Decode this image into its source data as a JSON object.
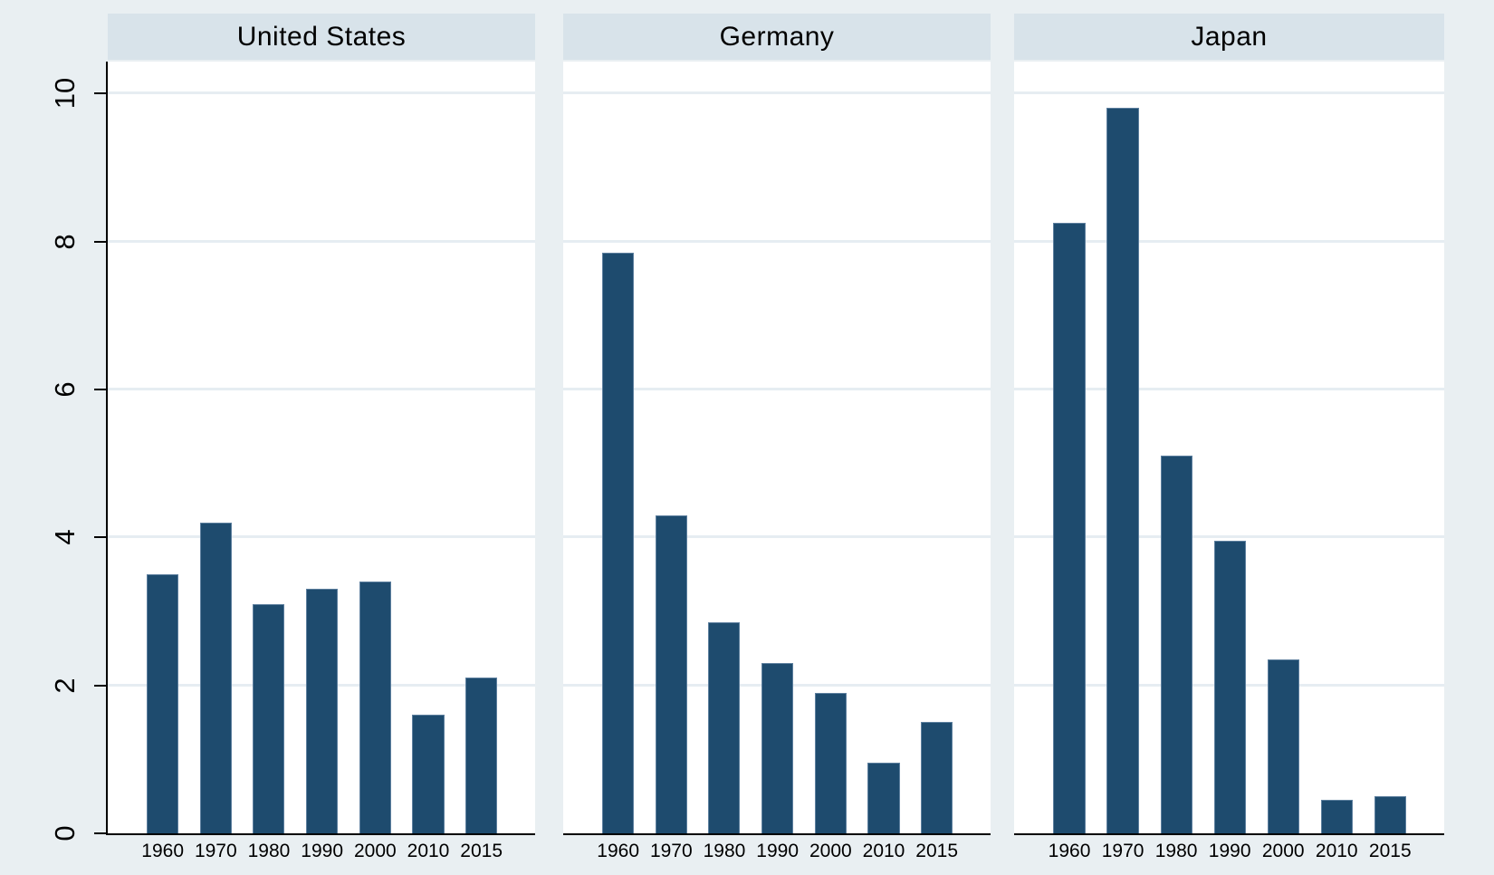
{
  "chart_data": {
    "type": "bar",
    "categories": [
      "1960",
      "1970",
      "1980",
      "1990",
      "2000",
      "2010",
      "2015"
    ],
    "panels": [
      {
        "title": "United States",
        "values": [
          3.5,
          4.2,
          3.1,
          3.3,
          3.4,
          1.6,
          2.1
        ]
      },
      {
        "title": "Germany",
        "values": [
          7.85,
          4.3,
          2.85,
          2.3,
          1.9,
          0.95,
          1.5
        ]
      },
      {
        "title": "Japan",
        "values": [
          8.25,
          9.8,
          5.1,
          3.95,
          2.35,
          0.45,
          0.5
        ]
      }
    ],
    "yticks": [
      0,
      2,
      4,
      6,
      8,
      10
    ],
    "ylim": [
      0,
      10.43
    ],
    "xlabel": "",
    "ylabel": "",
    "title": "",
    "grid": true,
    "legend": "none",
    "layout_hint": "three by-panels side by side, shared y axis on left, Stata s2color style",
    "bar_color": "#1e4b6e",
    "bar_outline_color": "#5d7f9e",
    "panel_band_color": "#d8e3ea",
    "background_color": "#e9eff2",
    "plot_background": "#ffffff",
    "gridline_color": "#e6edf2",
    "axis_color": "#000000"
  }
}
